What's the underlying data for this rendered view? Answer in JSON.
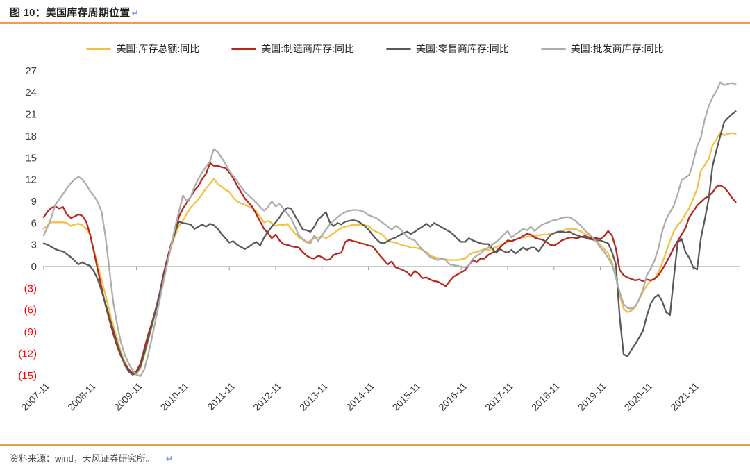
{
  "figure": {
    "title": "图 10：美国库存周期位置",
    "return_icon": "↵",
    "source_label": "资料来源：wind，天风证券研究所。"
  },
  "colors": {
    "accent_rule": "#E5A050",
    "axis": "#9a9a9a",
    "tick_label": "#404040",
    "negative_tick_label": "#FF0000",
    "x_label": "#333333",
    "return_icon": "#4472C4"
  },
  "chart_data": {
    "type": "line",
    "title": "美国库存周期位置",
    "x_start": "2007-11",
    "x_frequency": "monthly",
    "x_tick_interval_months": 12,
    "x_tick_labels": [
      "2007-11",
      "2008-11",
      "2009-11",
      "2010-11",
      "2011-11",
      "2012-11",
      "2013-11",
      "2014-11",
      "2015-11",
      "2016-11",
      "2017-11",
      "2018-11",
      "2019-11",
      "2020-11",
      "2021-11"
    ],
    "ylim": [
      -15,
      27
    ],
    "ytick_step": 3,
    "ytick_negative_format": "(n)",
    "grid": false,
    "legend_position": "top",
    "series": [
      {
        "name": "美国:库存总额:同比",
        "color": "#F2C143",
        "values": [
          5.2,
          5.7,
          6.1,
          6.1,
          6.1,
          6.1,
          6.0,
          5.6,
          5.8,
          5.9,
          5.7,
          5.2,
          4.4,
          2.2,
          0.2,
          -1.9,
          -4.0,
          -6.2,
          -8.2,
          -10.0,
          -11.8,
          -13.2,
          -14.2,
          -14.8,
          -14.9,
          -14.0,
          -12.3,
          -10.3,
          -8.2,
          -6.0,
          -3.8,
          -1.5,
          0.8,
          2.8,
          4.3,
          5.6,
          6.3,
          7.3,
          8.1,
          8.7,
          9.3,
          10.0,
          10.8,
          11.4,
          12.1,
          11.4,
          11.0,
          10.6,
          10.3,
          9.5,
          9.0,
          8.7,
          8.5,
          8.3,
          8.0,
          7.6,
          6.8,
          6.1,
          6.3,
          6.0,
          5.6,
          5.8,
          5.7,
          5.9,
          5.2,
          4.6,
          4.0,
          3.7,
          3.3,
          3.6,
          3.9,
          4.0,
          4.2,
          3.9,
          4.2,
          4.6,
          5.0,
          5.3,
          5.5,
          5.6,
          5.8,
          5.7,
          5.8,
          5.7,
          5.6,
          5.1,
          4.8,
          4.6,
          4.2,
          3.5,
          3.4,
          3.3,
          3.1,
          2.9,
          2.8,
          2.6,
          2.6,
          2.5,
          2.3,
          2.0,
          1.5,
          1.3,
          1.2,
          1.1,
          1.0,
          0.9,
          0.9,
          0.9,
          1.0,
          1.1,
          1.6,
          1.9,
          2.0,
          2.2,
          2.4,
          2.3,
          2.5,
          2.7,
          2.9,
          3.1,
          3.4,
          3.5,
          3.7,
          3.9,
          4.0,
          4.1,
          4.2,
          4.2,
          4.3,
          4.4,
          4.4,
          4.5,
          4.6,
          4.7,
          4.9,
          5.1,
          5.2,
          5.2,
          5.1,
          4.8,
          4.5,
          4.2,
          3.8,
          3.4,
          3.0,
          2.4,
          1.8,
          0.6,
          -1.5,
          -4.0,
          -5.8,
          -6.3,
          -6.1,
          -5.6,
          -4.6,
          -3.5,
          -2.6,
          -2.0,
          -1.7,
          -0.8,
          0.5,
          2.0,
          3.5,
          4.9,
          5.7,
          6.3,
          7.2,
          8.1,
          9.3,
          10.7,
          13.2,
          14.0,
          14.8,
          16.7,
          17.5,
          18.5,
          18.1,
          18.3,
          18.4,
          18.3
        ]
      },
      {
        "name": "美国:制造商库存:同比",
        "color": "#B5271E",
        "values": [
          6.8,
          7.6,
          8.1,
          8.3,
          8.0,
          8.2,
          7.2,
          6.7,
          6.9,
          7.2,
          7.0,
          6.2,
          4.4,
          2.0,
          -0.5,
          -3.0,
          -5.4,
          -7.4,
          -9.3,
          -11.0,
          -12.4,
          -13.4,
          -14.2,
          -14.7,
          -14.4,
          -13.4,
          -11.4,
          -9.4,
          -7.7,
          -5.8,
          -3.6,
          -1.0,
          1.2,
          3.2,
          4.8,
          6.9,
          8.0,
          8.8,
          9.6,
          10.5,
          11.1,
          12.1,
          12.8,
          14.3,
          13.9,
          13.9,
          13.7,
          13.6,
          13.0,
          12.2,
          11.2,
          10.3,
          9.4,
          8.8,
          8.2,
          7.2,
          6.2,
          5.2,
          4.6,
          3.9,
          4.4,
          3.6,
          3.1,
          3.0,
          2.8,
          2.7,
          2.6,
          2.0,
          1.5,
          1.2,
          1.1,
          1.5,
          1.3,
          0.9,
          1.0,
          1.6,
          1.8,
          1.9,
          3.4,
          3.7,
          3.5,
          3.4,
          3.2,
          3.1,
          2.9,
          2.8,
          2.2,
          1.5,
          0.9,
          0.3,
          0.7,
          -0.1,
          -0.3,
          -0.5,
          -0.8,
          -1.3,
          -0.6,
          -1.0,
          -1.6,
          -1.5,
          -1.8,
          -2.0,
          -2.1,
          -2.4,
          -2.7,
          -2.0,
          -1.4,
          -1.1,
          -0.8,
          -0.5,
          0.2,
          0.9,
          0.6,
          1.1,
          1.1,
          1.6,
          1.9,
          2.1,
          2.6,
          3.1,
          3.6,
          3.5,
          3.7,
          3.9,
          4.2,
          4.5,
          4.4,
          4.0,
          3.8,
          3.7,
          3.4,
          3.0,
          2.9,
          3.2,
          3.6,
          3.8,
          4.0,
          4.0,
          3.9,
          4.1,
          4.2,
          4.0,
          3.9,
          3.9,
          3.8,
          4.2,
          4.9,
          4.3,
          2.5,
          -0.5,
          -1.2,
          -1.5,
          -1.7,
          -1.9,
          -1.8,
          -2.0,
          -1.8,
          -1.9,
          -1.7,
          -1.2,
          -0.4,
          0.5,
          1.5,
          2.6,
          3.5,
          4.4,
          5.3,
          6.8,
          7.6,
          8.4,
          8.9,
          9.4,
          9.7,
          10.2,
          11.0,
          11.2,
          10.9,
          10.3,
          9.5,
          8.9
        ]
      },
      {
        "name": "美国:零售商库存:同比",
        "color": "#595959",
        "values": [
          3.2,
          3.0,
          2.7,
          2.4,
          2.2,
          2.1,
          1.7,
          1.3,
          0.8,
          0.3,
          0.6,
          0.3,
          0.1,
          -0.7,
          -1.8,
          -3.4,
          -5.2,
          -7.0,
          -8.8,
          -10.6,
          -12.2,
          -13.6,
          -14.5,
          -14.9,
          -14.6,
          -13.8,
          -12.0,
          -10.0,
          -8.0,
          -6.0,
          -3.8,
          -1.5,
          0.8,
          3.0,
          4.8,
          6.2,
          6.0,
          5.9,
          5.8,
          5.2,
          5.5,
          5.8,
          5.5,
          5.9,
          5.7,
          5.2,
          4.5,
          3.9,
          3.3,
          3.5,
          3.0,
          2.7,
          2.4,
          2.7,
          3.1,
          3.4,
          2.9,
          4.0,
          4.8,
          5.5,
          6.1,
          6.8,
          7.6,
          8.1,
          8.0,
          7.0,
          6.1,
          5.1,
          5.0,
          4.8,
          5.5,
          6.5,
          7.0,
          7.5,
          6.1,
          5.6,
          6.0,
          5.8,
          6.2,
          6.3,
          6.4,
          6.3,
          6.0,
          5.6,
          5.1,
          4.4,
          3.8,
          3.3,
          3.2,
          3.5,
          3.8,
          4.0,
          4.3,
          4.6,
          4.8,
          4.5,
          4.8,
          5.2,
          5.5,
          5.9,
          5.5,
          6.0,
          5.7,
          5.4,
          5.1,
          4.8,
          4.4,
          3.8,
          3.4,
          3.4,
          3.9,
          3.6,
          3.4,
          3.2,
          3.1,
          3.1,
          2.5,
          1.9,
          2.4,
          2.1,
          1.9,
          2.3,
          1.8,
          2.2,
          2.6,
          2.3,
          2.6,
          2.6,
          2.1,
          2.8,
          3.6,
          4.3,
          4.6,
          4.8,
          4.8,
          4.7,
          4.8,
          4.5,
          4.3,
          4.1,
          4.0,
          3.8,
          3.7,
          3.6,
          3.6,
          3.4,
          3.2,
          2.0,
          0.3,
          -7.0,
          -12.1,
          -12.4,
          -11.5,
          -10.7,
          -9.8,
          -8.9,
          -6.8,
          -5.1,
          -4.3,
          -3.9,
          -4.8,
          -6.3,
          -6.7,
          -1.5,
          3.3,
          3.8,
          2.0,
          1.2,
          -0.1,
          -0.4,
          3.9,
          6.5,
          9.3,
          13.8,
          16.0,
          18.0,
          19.9,
          20.5,
          21.0,
          21.4
        ]
      },
      {
        "name": "美国:批发商库存:同比",
        "color": "#ADADAD",
        "values": [
          4.3,
          5.5,
          6.8,
          8.5,
          9.3,
          10.0,
          10.8,
          11.5,
          12.0,
          12.4,
          12.0,
          11.3,
          10.4,
          9.7,
          8.9,
          7.5,
          4.0,
          -0.5,
          -5.0,
          -8.0,
          -10.5,
          -12.2,
          -13.4,
          -14.3,
          -14.9,
          -15.1,
          -14.2,
          -12.2,
          -9.8,
          -7.2,
          -4.6,
          -2.0,
          0.5,
          3.0,
          5.5,
          7.6,
          9.8,
          9.0,
          9.6,
          11.0,
          12.1,
          13.0,
          13.8,
          14.5,
          16.2,
          15.8,
          15.0,
          14.2,
          13.2,
          12.5,
          11.8,
          11.0,
          10.3,
          9.8,
          9.3,
          8.8,
          8.2,
          7.7,
          8.2,
          9.0,
          8.3,
          8.6,
          8.0,
          7.3,
          6.6,
          5.5,
          4.3,
          3.8,
          3.4,
          3.2,
          4.3,
          3.5,
          4.3,
          5.1,
          5.8,
          6.3,
          6.8,
          7.2,
          7.5,
          7.7,
          7.8,
          7.8,
          7.7,
          7.5,
          7.1,
          6.9,
          6.7,
          6.3,
          5.9,
          5.5,
          5.1,
          5.6,
          5.3,
          4.7,
          4.1,
          3.8,
          3.6,
          2.9,
          2.3,
          1.8,
          1.3,
          1.1,
          0.9,
          1.1,
          0.9,
          0.3,
          0.2,
          0.1,
          0.0,
          -0.1,
          0.2,
          1.1,
          1.5,
          1.8,
          2.3,
          2.6,
          3.0,
          3.4,
          3.8,
          4.4,
          4.9,
          4.0,
          4.4,
          4.8,
          5.2,
          5.0,
          5.5,
          4.9,
          5.4,
          5.8,
          6.0,
          6.2,
          6.4,
          6.5,
          6.7,
          6.8,
          6.8,
          6.5,
          6.1,
          5.6,
          5.0,
          4.5,
          4.0,
          3.4,
          2.6,
          2.0,
          1.2,
          0.3,
          -1.5,
          -3.5,
          -5.2,
          -5.7,
          -5.8,
          -5.5,
          -4.5,
          -3.2,
          -1.2,
          -0.3,
          0.8,
          2.5,
          4.9,
          6.5,
          7.5,
          8.4,
          10.0,
          11.9,
          12.3,
          12.6,
          14.4,
          16.6,
          17.8,
          20.3,
          22.1,
          23.3,
          24.2,
          25.4,
          25.0,
          25.2,
          25.3,
          25.1
        ]
      }
    ]
  }
}
